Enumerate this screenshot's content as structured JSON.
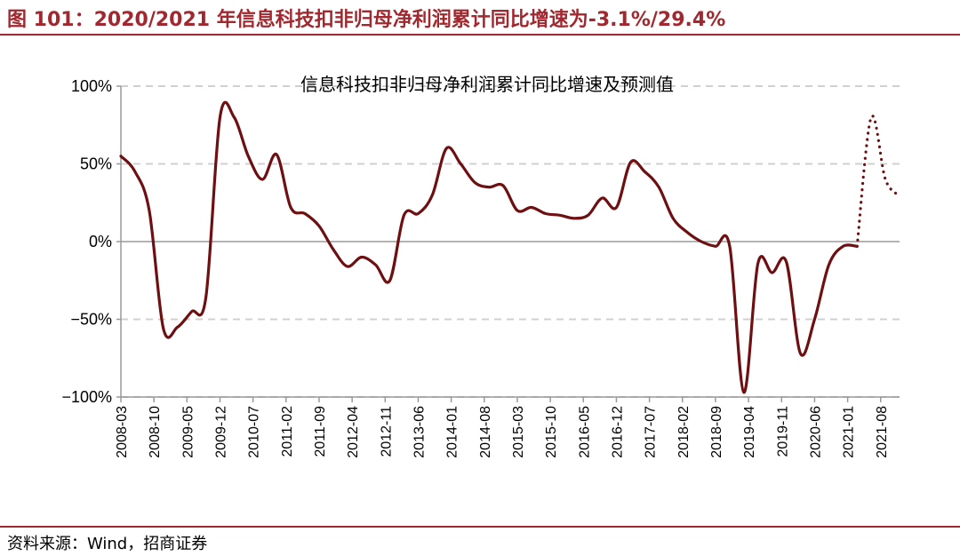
{
  "figure": {
    "title": "图 101：2020/2021 年信息科技扣非归母净利润累计同比增速为-3.1%/29.4%",
    "source": "资料来源：Wind，招商证券"
  },
  "colors": {
    "accent": "#a0282e",
    "series": "#6e0f12",
    "grid": "#d0d0d0"
  },
  "chart_data": {
    "type": "line",
    "title": "信息科技扣非归母净利润累计同比增速及预测值",
    "xlabel": "",
    "ylabel": "",
    "ylim": [
      -100,
      100
    ],
    "y_ticks": [
      "100%",
      "50%",
      "0%",
      "−50%",
      "−100%"
    ],
    "y_tick_values": [
      100,
      50,
      0,
      -50,
      -100
    ],
    "x_tick_labels": [
      "2008-03",
      "2008-10",
      "2009-05",
      "2009-12",
      "2010-07",
      "2011-02",
      "2011-09",
      "2012-04",
      "2012-11",
      "2013-06",
      "2014-01",
      "2014-08",
      "2015-03",
      "2015-10",
      "2016-05",
      "2016-12",
      "2017-07",
      "2018-02",
      "2018-09",
      "2019-04",
      "2019-11",
      "2020-06",
      "2021-01",
      "2021-08"
    ],
    "grid": "horizontal dashed",
    "legend": "none",
    "series": [
      {
        "style": "solid",
        "points": [
          [
            "2008-03",
            55
          ],
          [
            "2008-06",
            45
          ],
          [
            "2008-09",
            20
          ],
          [
            "2008-12",
            -56
          ],
          [
            "2009-03",
            -55
          ],
          [
            "2009-06",
            -45
          ],
          [
            "2009-09",
            -36
          ],
          [
            "2009-12",
            80
          ],
          [
            "2010-03",
            80
          ],
          [
            "2010-06",
            55
          ],
          [
            "2010-09",
            40
          ],
          [
            "2010-12",
            56
          ],
          [
            "2011-03",
            22
          ],
          [
            "2011-06",
            18
          ],
          [
            "2011-09",
            10
          ],
          [
            "2011-12",
            -5
          ],
          [
            "2012-03",
            -16
          ],
          [
            "2012-06",
            -10
          ],
          [
            "2012-09",
            -15
          ],
          [
            "2012-12",
            -25
          ],
          [
            "2013-03",
            17
          ],
          [
            "2013-06",
            18
          ],
          [
            "2013-09",
            30
          ],
          [
            "2013-12",
            60
          ],
          [
            "2014-03",
            50
          ],
          [
            "2014-06",
            38
          ],
          [
            "2014-09",
            35
          ],
          [
            "2014-12",
            36
          ],
          [
            "2015-03",
            20
          ],
          [
            "2015-06",
            22
          ],
          [
            "2015-09",
            18
          ],
          [
            "2015-12",
            17
          ],
          [
            "2016-03",
            15
          ],
          [
            "2016-06",
            17
          ],
          [
            "2016-09",
            28
          ],
          [
            "2016-12",
            22
          ],
          [
            "2017-03",
            51
          ],
          [
            "2017-06",
            45
          ],
          [
            "2017-09",
            35
          ],
          [
            "2017-12",
            15
          ],
          [
            "2018-03",
            6
          ],
          [
            "2018-06",
            0
          ],
          [
            "2018-09",
            -3
          ],
          [
            "2018-12",
            -3
          ],
          [
            "2019-03",
            -97
          ],
          [
            "2019-06",
            -14
          ],
          [
            "2019-09",
            -20
          ],
          [
            "2019-12",
            -13
          ],
          [
            "2020-03",
            -72
          ],
          [
            "2020-06",
            -50
          ],
          [
            "2020-09",
            -15
          ],
          [
            "2020-12",
            -3.1
          ],
          [
            "2021-03",
            -3
          ]
        ]
      },
      {
        "style": "dotted",
        "points": [
          [
            "2021-03",
            -3
          ],
          [
            "2021-06",
            80
          ],
          [
            "2021-09",
            40
          ],
          [
            "2021-12",
            29.4
          ]
        ]
      }
    ]
  }
}
